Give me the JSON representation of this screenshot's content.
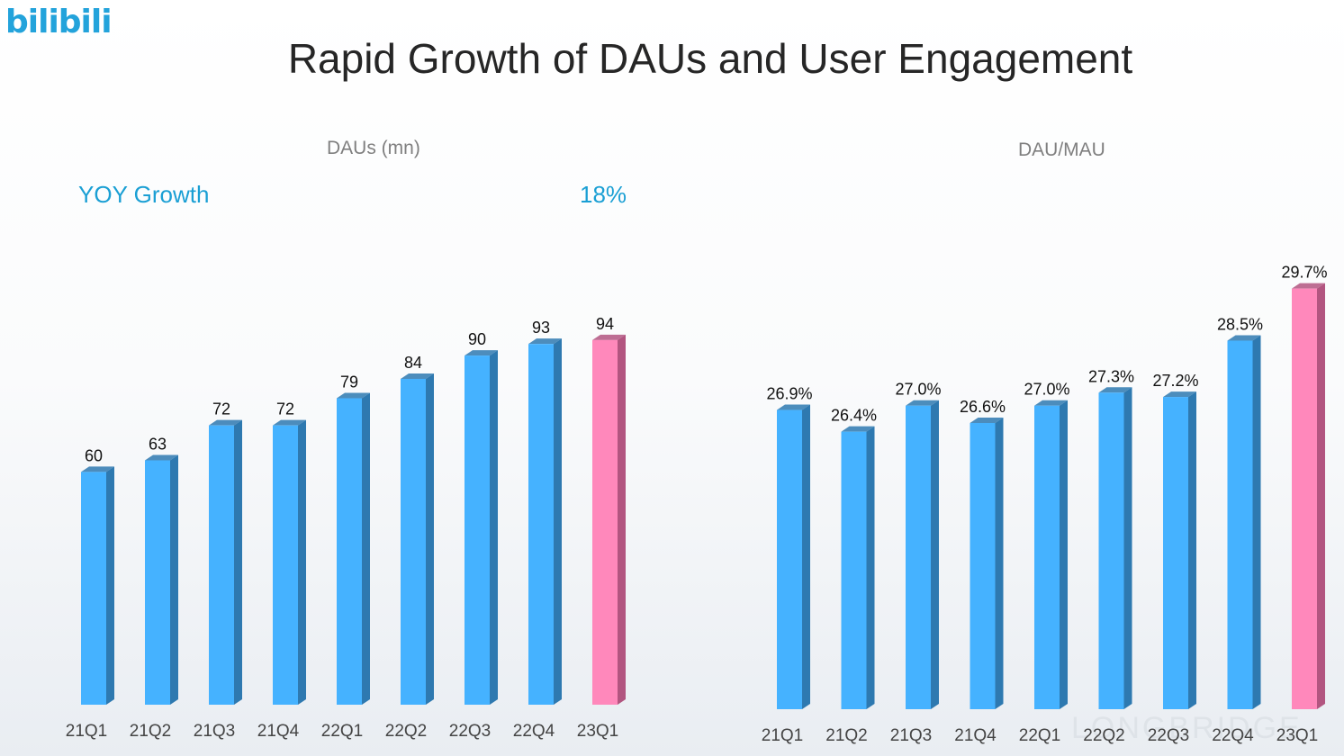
{
  "logo_text": "bilibili",
  "title": "Rapid Growth of DAUs and User Engagement",
  "watermark": "LONGBRIDGE",
  "yoy": {
    "label": "YOY Growth",
    "value": "18%"
  },
  "colors": {
    "bar": "#45b2ff",
    "bar_side": "#2e79b0",
    "highlight": "#ff88bb",
    "highlight_side": "#b25580",
    "accent": "#1a9fd4"
  },
  "chart_data": [
    {
      "type": "bar",
      "title": "DAUs (mn)",
      "categories": [
        "21Q1",
        "21Q2",
        "21Q3",
        "21Q4",
        "22Q1",
        "22Q2",
        "22Q3",
        "22Q4",
        "23Q1"
      ],
      "values": [
        60,
        63,
        72,
        72,
        79,
        84,
        90,
        93,
        94
      ],
      "labels": [
        "60",
        "63",
        "72",
        "72",
        "79",
        "84",
        "90",
        "93",
        "94"
      ],
      "highlight_index": 8,
      "ylim": [
        0,
        100
      ],
      "grid": false
    },
    {
      "type": "bar",
      "title": "DAU/MAU",
      "categories": [
        "21Q1",
        "21Q2",
        "21Q3",
        "21Q4",
        "22Q1",
        "22Q2",
        "22Q3",
        "22Q4",
        "23Q1"
      ],
      "values": [
        26.9,
        26.4,
        27.0,
        26.6,
        27.0,
        27.3,
        27.2,
        28.5,
        29.7
      ],
      "labels": [
        "26.9%",
        "26.4%",
        "27.0%",
        "26.6%",
        "27.0%",
        "27.3%",
        "27.2%",
        "28.5%",
        "29.7%"
      ],
      "highlight_index": 8,
      "ylim": [
        20,
        31
      ],
      "grid": false
    }
  ]
}
